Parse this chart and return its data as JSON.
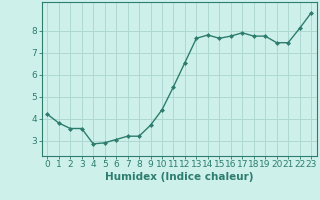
{
  "title": "",
  "xlabel": "Humidex (Indice chaleur)",
  "ylabel": "",
  "x": [
    0,
    1,
    2,
    3,
    4,
    5,
    6,
    7,
    8,
    9,
    10,
    11,
    12,
    13,
    14,
    15,
    16,
    17,
    18,
    19,
    20,
    21,
    22,
    23
  ],
  "y": [
    4.2,
    3.8,
    3.55,
    3.55,
    2.85,
    2.9,
    3.05,
    3.2,
    3.2,
    3.7,
    4.4,
    5.45,
    6.55,
    7.65,
    7.8,
    7.65,
    7.75,
    7.9,
    7.75,
    7.75,
    7.45,
    7.45,
    8.1,
    8.8
  ],
  "line_color": "#2d7d6e",
  "marker": "D",
  "marker_size": 2.0,
  "background_color": "#cef0eb",
  "grid_color": "#b0d8d2",
  "tick_color": "#2d7d6e",
  "label_color": "#2d7d6e",
  "xlim": [
    -0.5,
    23.5
  ],
  "ylim": [
    2.3,
    9.3
  ],
  "yticks": [
    3,
    4,
    5,
    6,
    7,
    8
  ],
  "xticks": [
    0,
    1,
    2,
    3,
    4,
    5,
    6,
    7,
    8,
    9,
    10,
    11,
    12,
    13,
    14,
    15,
    16,
    17,
    18,
    19,
    20,
    21,
    22,
    23
  ],
  "xlabel_fontsize": 7.5,
  "tick_fontsize": 6.5,
  "linewidth": 1.0
}
